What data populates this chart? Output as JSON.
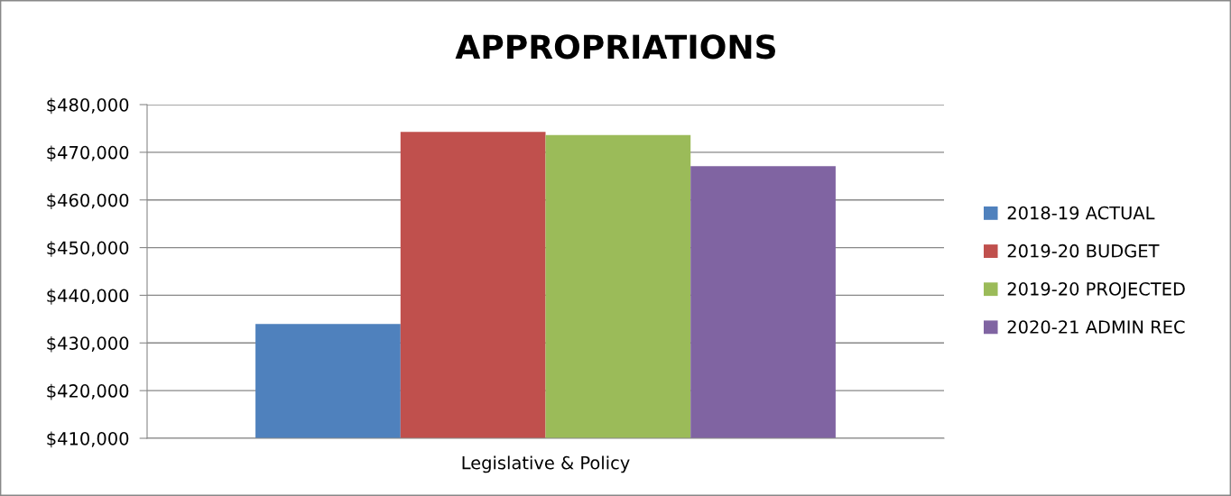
{
  "chart_data": {
    "type": "bar",
    "title": "APPROPRIATIONS",
    "categories": [
      "Legislative & Policy"
    ],
    "series": [
      {
        "name": "2018-19 ACTUAL",
        "color": "#4f81bd",
        "values": [
          434000
        ]
      },
      {
        "name": "2019-20 BUDGET",
        "color": "#c0504d",
        "values": [
          474300
        ]
      },
      {
        "name": "2019-20 PROJECTED",
        "color": "#9bbb59",
        "values": [
          473600
        ]
      },
      {
        "name": "2020-21 ADMIN REC",
        "color": "#8064a2",
        "values": [
          467100
        ]
      }
    ],
    "ylim": [
      410000,
      480000
    ],
    "yticks": [
      {
        "value": 410000,
        "label": "$410,000"
      },
      {
        "value": 420000,
        "label": "$420,000"
      },
      {
        "value": 430000,
        "label": "$430,000"
      },
      {
        "value": 440000,
        "label": "$440,000"
      },
      {
        "value": 450000,
        "label": "$450,000"
      },
      {
        "value": 460000,
        "label": "$460,000"
      },
      {
        "value": 470000,
        "label": "$470,000"
      },
      {
        "value": 480000,
        "label": "$480,000"
      }
    ],
    "grid": "y",
    "legend": "right"
  }
}
